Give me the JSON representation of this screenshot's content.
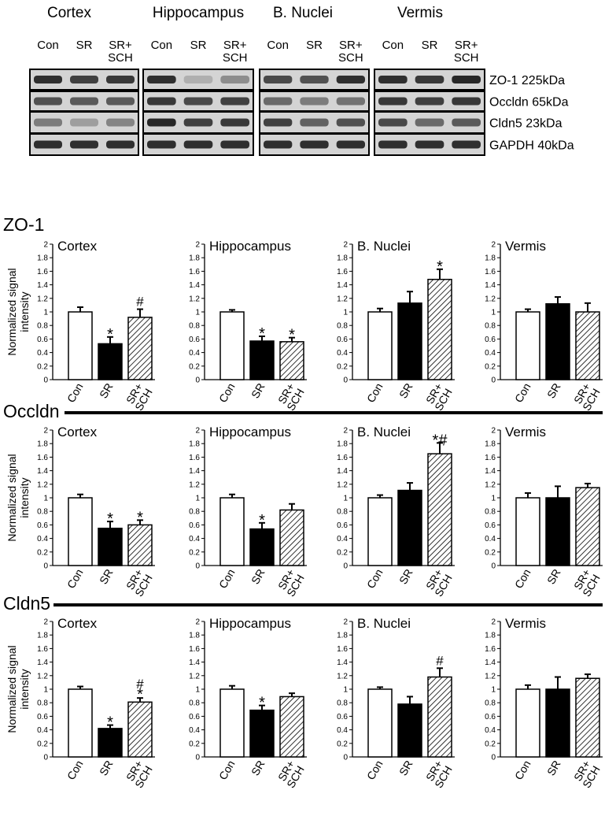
{
  "blot": {
    "regions": [
      "Cortex",
      "Hippocampus",
      "B. Nuclei",
      "Vermis"
    ],
    "lane_labels": [
      "Con",
      "SR",
      "SR+\nSCH"
    ],
    "row_labels": [
      "ZO-1 225kDa",
      "Occldn 65kDa",
      "Cldn5 23kDa",
      "GAPDH 40kDa"
    ]
  },
  "ylabel": "Normalized signal intensity",
  "chart_data": [
    {
      "type": "bar",
      "title": "ZO-1",
      "ylim": [
        0,
        2
      ],
      "yticks": [
        0,
        0.2,
        0.4,
        0.6,
        0.8,
        1,
        1.2,
        1.4,
        1.6,
        1.8,
        2
      ],
      "categories": [
        "Con",
        "SR",
        "SR+ SCH"
      ],
      "panels": [
        {
          "region": "Cortex",
          "values": [
            1.0,
            0.53,
            0.92
          ],
          "errors": [
            0.07,
            0.1,
            0.12
          ],
          "annotations": [
            "",
            "*",
            "#"
          ]
        },
        {
          "region": "Hippocampus",
          "values": [
            1.0,
            0.57,
            0.56
          ],
          "errors": [
            0.03,
            0.07,
            0.06
          ],
          "annotations": [
            "",
            "*",
            "*"
          ]
        },
        {
          "region": "B. Nuclei",
          "values": [
            1.0,
            1.13,
            1.48
          ],
          "errors": [
            0.05,
            0.17,
            0.15
          ],
          "annotations": [
            "",
            "",
            "*"
          ]
        },
        {
          "region": "Vermis",
          "values": [
            1.0,
            1.12,
            1.0
          ],
          "errors": [
            0.04,
            0.1,
            0.13
          ],
          "annotations": [
            "",
            "",
            ""
          ]
        }
      ]
    },
    {
      "type": "bar",
      "title": "Occldn",
      "ylim": [
        0,
        2
      ],
      "yticks": [
        0,
        0.2,
        0.4,
        0.6,
        0.8,
        1,
        1.2,
        1.4,
        1.6,
        1.8,
        2
      ],
      "categories": [
        "Con",
        "SR",
        "SR+ SCH"
      ],
      "panels": [
        {
          "region": "Cortex",
          "values": [
            1.0,
            0.55,
            0.6
          ],
          "errors": [
            0.05,
            0.1,
            0.07
          ],
          "annotations": [
            "",
            "*",
            "*"
          ]
        },
        {
          "region": "Hippocampus",
          "values": [
            1.0,
            0.54,
            0.82
          ],
          "errors": [
            0.05,
            0.09,
            0.09
          ],
          "annotations": [
            "",
            "*",
            ""
          ]
        },
        {
          "region": "B. Nuclei",
          "values": [
            1.0,
            1.11,
            1.65
          ],
          "errors": [
            0.04,
            0.11,
            0.16
          ],
          "annotations": [
            "",
            "",
            "*#"
          ]
        },
        {
          "region": "Vermis",
          "values": [
            1.0,
            1.0,
            1.15
          ],
          "errors": [
            0.07,
            0.17,
            0.06
          ],
          "annotations": [
            "",
            "",
            ""
          ]
        }
      ]
    },
    {
      "type": "bar",
      "title": "Cldn5",
      "ylim": [
        0,
        2
      ],
      "yticks": [
        0,
        0.2,
        0.4,
        0.6,
        0.8,
        1,
        1.2,
        1.4,
        1.6,
        1.8,
        2
      ],
      "categories": [
        "Con",
        "SR",
        "SR+ SCH"
      ],
      "panels": [
        {
          "region": "Cortex",
          "values": [
            1.0,
            0.42,
            0.81
          ],
          "errors": [
            0.04,
            0.05,
            0.06
          ],
          "annotations": [
            "",
            "*",
            "*#"
          ]
        },
        {
          "region": "Hippocampus",
          "values": [
            1.0,
            0.69,
            0.89
          ],
          "errors": [
            0.05,
            0.07,
            0.05
          ],
          "annotations": [
            "",
            "*",
            ""
          ]
        },
        {
          "region": "B. Nuclei",
          "values": [
            1.0,
            0.78,
            1.18
          ],
          "errors": [
            0.03,
            0.11,
            0.13
          ],
          "annotations": [
            "",
            "",
            "#"
          ]
        },
        {
          "region": "Vermis",
          "values": [
            1.0,
            1.0,
            1.16
          ],
          "errors": [
            0.06,
            0.18,
            0.06
          ],
          "annotations": [
            "",
            "",
            ""
          ]
        }
      ]
    }
  ]
}
